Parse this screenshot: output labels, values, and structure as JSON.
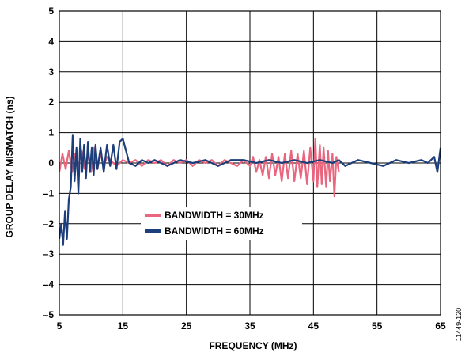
{
  "figure_id": "11449-120",
  "chart_data": {
    "type": "line",
    "xlabel": "FREQUENCY (MHz)",
    "ylabel": "GROUP DELAY MISMATCH (ns)",
    "xlim": [
      5,
      65
    ],
    "ylim": [
      -5,
      5
    ],
    "x_ticks": [
      5,
      15,
      25,
      35,
      45,
      55,
      65
    ],
    "y_ticks": [
      5,
      4,
      3,
      2,
      1,
      0,
      -1,
      -2,
      -3,
      -4,
      -5
    ],
    "y_tick_labels": [
      "5",
      "4",
      "3",
      "2",
      "1",
      "0",
      "–1",
      "–2",
      "–3",
      "–4",
      "–5"
    ],
    "grid": true,
    "legend_position": "center-left",
    "series": [
      {
        "name": "BANDWIDTH = 30MHz",
        "color": "#e8677f",
        "x": [
          5,
          5.5,
          6,
          6.5,
          7,
          7.5,
          8,
          8.5,
          9,
          9.5,
          10,
          10.5,
          11,
          11.5,
          12,
          12.5,
          13,
          14,
          15,
          16,
          17,
          18,
          19,
          20,
          21,
          22,
          23,
          24,
          25,
          26,
          27,
          28,
          29,
          30,
          31,
          32,
          33,
          34,
          35,
          35.5,
          36,
          36.5,
          37,
          37.5,
          38,
          38.5,
          39,
          39.5,
          40,
          40.5,
          41,
          41.5,
          42,
          42.5,
          43,
          43.5,
          44,
          44.5,
          45,
          45.3,
          45.6,
          46,
          46.3,
          46.6,
          47,
          47.3,
          47.6,
          48,
          48.3,
          48.6,
          49
        ],
        "y": [
          -0.3,
          0.3,
          -0.2,
          0.4,
          -0.3,
          0.3,
          -0.1,
          0.4,
          -0.2,
          0.3,
          -0.3,
          0.5,
          -0.2,
          0.3,
          -0.1,
          0.2,
          0.1,
          -0.1,
          0.1,
          0.0,
          0.1,
          -0.1,
          0.1,
          0.0,
          0.1,
          -0.1,
          0.1,
          0.0,
          0.1,
          -0.1,
          0.1,
          0.0,
          0.1,
          -0.1,
          0.1,
          0.0,
          -0.1,
          0.1,
          -0.1,
          0.2,
          -0.3,
          0.1,
          -0.4,
          0.2,
          -0.5,
          0.3,
          -0.4,
          0.2,
          -0.6,
          0.3,
          -0.5,
          0.4,
          -0.6,
          0.3,
          -0.5,
          0.4,
          -0.7,
          0.5,
          -0.6,
          0.8,
          -0.8,
          0.6,
          -0.7,
          0.5,
          -0.8,
          0.4,
          -0.6,
          0.3,
          -1.1,
          0.2,
          -0.3
        ]
      },
      {
        "name": "BANDWIDTH = 60MHz",
        "color": "#1c3f7c",
        "x": [
          5,
          5.3,
          5.6,
          5.9,
          6.2,
          6.5,
          6.8,
          7.1,
          7.4,
          7.7,
          8,
          8.3,
          8.6,
          8.9,
          9.2,
          9.5,
          9.8,
          10.1,
          10.4,
          10.7,
          11,
          11.5,
          12,
          12.5,
          13,
          13.5,
          14,
          14.5,
          15,
          16,
          17,
          18,
          19,
          20,
          22,
          24,
          26,
          28,
          30,
          32,
          34,
          36,
          38,
          40,
          42,
          44,
          46,
          48,
          49,
          50,
          52,
          54,
          56,
          58,
          60,
          62,
          63,
          64,
          64.5,
          65
        ],
        "y": [
          -2.5,
          -2.0,
          -2.7,
          -1.6,
          -2.5,
          -1.2,
          -0.8,
          0.9,
          -0.6,
          0.5,
          -1.0,
          0.8,
          -0.3,
          0.6,
          -0.5,
          0.7,
          -0.3,
          0.5,
          -0.4,
          0.6,
          -0.2,
          0.5,
          -0.3,
          0.6,
          -0.1,
          0.6,
          -0.2,
          0.7,
          0.8,
          0.0,
          -0.1,
          0.1,
          0.0,
          0.1,
          -0.1,
          0.1,
          0.0,
          0.1,
          -0.1,
          0.1,
          0.1,
          0.0,
          0.1,
          0.0,
          0.1,
          0.0,
          0.1,
          0.0,
          0.1,
          -0.1,
          0.1,
          0.0,
          -0.1,
          0.1,
          0.0,
          0.1,
          0.0,
          0.2,
          -0.3,
          0.5
        ]
      }
    ]
  }
}
